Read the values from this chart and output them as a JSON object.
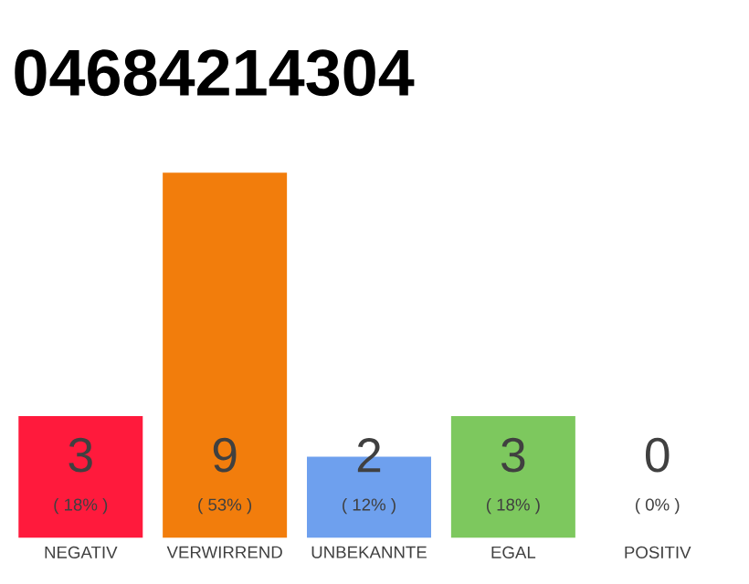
{
  "chart_data": {
    "type": "bar",
    "title": "04684214304",
    "categories": [
      "NEGATIV",
      "VERWIRREND",
      "UNBEKANNTE",
      "EGAL",
      "POSITIV"
    ],
    "values": [
      3,
      9,
      2,
      3,
      0
    ],
    "colors": [
      "#ff1a3c",
      "#f27d0c",
      "#6ea0ee",
      "#7dc85e",
      "#c8c8c8"
    ],
    "data_labels": true,
    "annotations": [
      "( 18% )",
      "( 53% )",
      "( 12% )",
      "( 18% )",
      "( 0% )"
    ]
  }
}
